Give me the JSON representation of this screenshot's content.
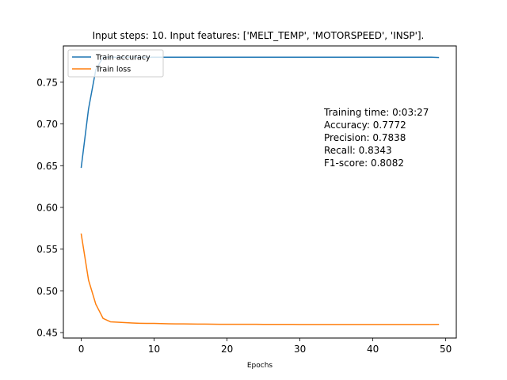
{
  "chart_data": {
    "type": "line",
    "title": "Input steps: 10. Input features: ['MELT_TEMP', 'MOTORSPEED', 'INSP'].",
    "xlabel": "Epochs",
    "ylabel": "",
    "xlim": [
      -2.45,
      51.45
    ],
    "ylim": [
      0.4435,
      0.7935
    ],
    "xticks": [
      0,
      10,
      20,
      30,
      40,
      50
    ],
    "yticks": [
      0.45,
      0.5,
      0.55,
      0.6,
      0.65,
      0.7,
      0.75
    ],
    "ytick_labels": [
      "0.45",
      "0.50",
      "0.55",
      "0.60",
      "0.65",
      "0.70",
      "0.75"
    ],
    "legend_position": "top-left",
    "grid": false,
    "x": [
      0,
      1,
      2,
      3,
      4,
      5,
      6,
      7,
      8,
      9,
      10,
      11,
      12,
      13,
      14,
      15,
      16,
      17,
      18,
      19,
      20,
      21,
      22,
      23,
      24,
      25,
      26,
      27,
      28,
      29,
      30,
      31,
      32,
      33,
      34,
      35,
      36,
      37,
      38,
      39,
      40,
      41,
      42,
      43,
      44,
      45,
      46,
      47,
      48,
      49
    ],
    "series": [
      {
        "name": "Train accuracy",
        "color": "#1f77b4",
        "values": [
          0.648,
          0.718,
          0.765,
          0.78,
          0.78,
          0.78,
          0.78,
          0.78,
          0.78,
          0.78,
          0.78,
          0.78,
          0.78,
          0.78,
          0.78,
          0.78,
          0.78,
          0.78,
          0.78,
          0.78,
          0.78,
          0.78,
          0.78,
          0.78,
          0.78,
          0.78,
          0.78,
          0.78,
          0.78,
          0.78,
          0.78,
          0.78,
          0.78,
          0.78,
          0.78,
          0.78,
          0.78,
          0.78,
          0.78,
          0.78,
          0.78,
          0.78,
          0.78,
          0.78,
          0.78,
          0.78,
          0.78,
          0.78,
          0.78,
          0.7797
        ]
      },
      {
        "name": "Train loss",
        "color": "#ff7f0e",
        "values": [
          0.568,
          0.513,
          0.484,
          0.467,
          0.463,
          0.4625,
          0.462,
          0.4615,
          0.4612,
          0.461,
          0.461,
          0.4608,
          0.4606,
          0.4605,
          0.4604,
          0.4603,
          0.4602,
          0.4602,
          0.4601,
          0.46,
          0.46,
          0.46,
          0.46,
          0.46,
          0.46,
          0.4599,
          0.4599,
          0.4599,
          0.4599,
          0.4599,
          0.4598,
          0.4598,
          0.4598,
          0.4598,
          0.4598,
          0.4598,
          0.4598,
          0.4598,
          0.4598,
          0.4597,
          0.4597,
          0.4597,
          0.4597,
          0.4597,
          0.4597,
          0.4597,
          0.4597,
          0.4597,
          0.4597,
          0.4598
        ]
      }
    ],
    "annotations": [
      "Training time: 0:03:27",
      "Accuracy: 0.7772",
      "Precision: 0.7838",
      "Recall: 0.8343",
      "F1-score: 0.8082"
    ]
  }
}
